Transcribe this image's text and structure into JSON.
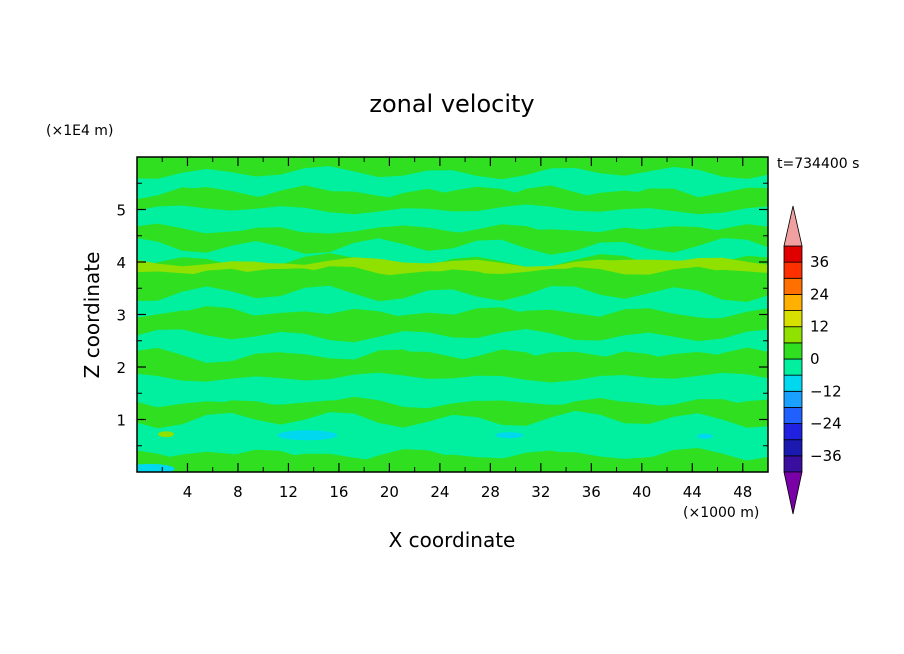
{
  "chart_data": {
    "type": "heatmap",
    "title": "zonal velocity",
    "xlabel": "X coordinate",
    "ylabel": "Z coordinate",
    "x_unit": "(×1000 m)",
    "y_unit": "(×1E4 m)",
    "time_label": "t=734400 s",
    "xlim": [
      0,
      50
    ],
    "ylim": [
      0,
      6
    ],
    "x_ticks": [
      "4",
      "8",
      "12",
      "16",
      "20",
      "24",
      "28",
      "32",
      "36",
      "40",
      "44",
      "48"
    ],
    "y_ticks": [
      "1",
      "2",
      "3",
      "4",
      "5"
    ],
    "colorbar": {
      "tick_labels": [
        "36",
        "24",
        "12",
        "0",
        "-12",
        "-24",
        "-36"
      ],
      "levels": [
        -42,
        -36,
        -30,
        -24,
        -18,
        -12,
        -6,
        0,
        6,
        12,
        18,
        24,
        30,
        36,
        42
      ],
      "colors": [
        "#7a00a8",
        "#3a0e9e",
        "#1a1ab0",
        "#2020e0",
        "#2060ff",
        "#1aa0ff",
        "#00d8f0",
        "#00f0a0",
        "#30e020",
        "#90e000",
        "#d8e000",
        "#ffb000",
        "#ff7000",
        "#ff3000",
        "#e00000",
        "#f0a0a0"
      ],
      "extend": "both"
    },
    "dominant_range": [
      -6,
      6
    ],
    "bands": [
      {
        "z": [
          5.7,
          6.0
        ],
        "value": 2
      },
      {
        "z": [
          5.3,
          5.7
        ],
        "value": -2
      },
      {
        "z": [
          5.0,
          5.3
        ],
        "value": 2
      },
      {
        "z": [
          4.6,
          5.0
        ],
        "value": -2
      },
      {
        "z": [
          4.3,
          4.6
        ],
        "value": 2
      },
      {
        "z": [
          4.0,
          4.3
        ],
        "value": -1
      },
      {
        "z": [
          3.8,
          4.0
        ],
        "value": 7
      },
      {
        "z": [
          3.4,
          3.8
        ],
        "value": 2
      },
      {
        "z": [
          3.0,
          3.4
        ],
        "value": -2
      },
      {
        "z": [
          2.6,
          3.0
        ],
        "value": 2
      },
      {
        "z": [
          2.2,
          2.6
        ],
        "value": -2
      },
      {
        "z": [
          1.8,
          2.2
        ],
        "value": 2
      },
      {
        "z": [
          1.3,
          1.8
        ],
        "value": -2
      },
      {
        "z": [
          1.0,
          1.3
        ],
        "value": 2
      },
      {
        "z": [
          0.3,
          1.0
        ],
        "value": -3
      },
      {
        "z": [
          0.0,
          0.3
        ],
        "value": 2
      }
    ]
  }
}
